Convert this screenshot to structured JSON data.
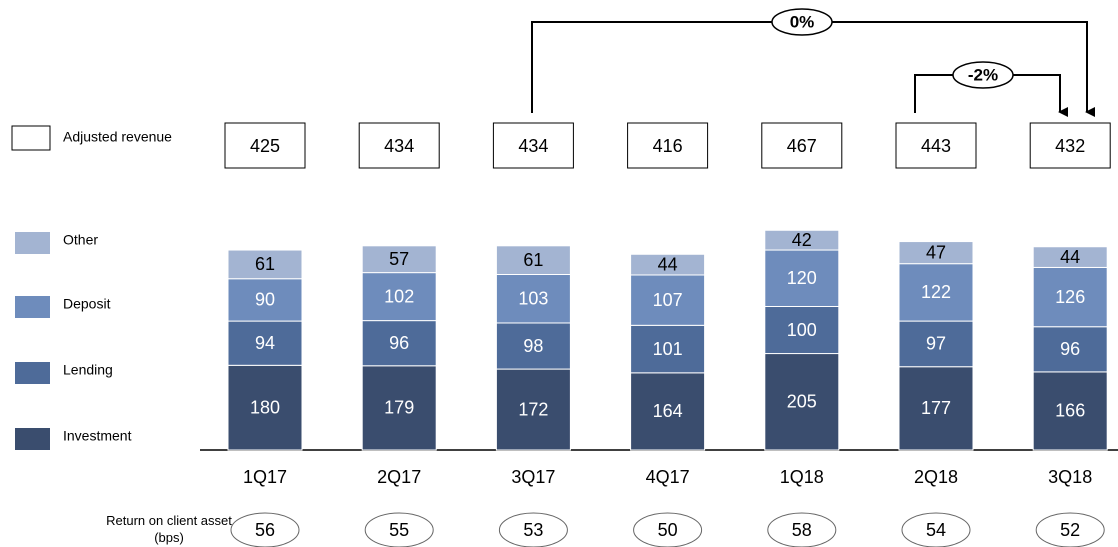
{
  "chart_data": {
    "type": "bar",
    "stacked": true,
    "categories": [
      "1Q17",
      "2Q17",
      "3Q17",
      "4Q17",
      "1Q18",
      "2Q18",
      "3Q18"
    ],
    "series": [
      {
        "name": "Investment",
        "color": "#3a4d6e",
        "values": [
          180,
          179,
          172,
          164,
          205,
          177,
          166
        ]
      },
      {
        "name": "Lending",
        "color": "#4e6b99",
        "values": [
          94,
          96,
          98,
          101,
          100,
          97,
          96
        ]
      },
      {
        "name": "Deposit",
        "color": "#6e8cbc",
        "values": [
          90,
          102,
          103,
          107,
          120,
          122,
          126
        ]
      },
      {
        "name": "Other",
        "color": "#a3b4d2",
        "values": [
          61,
          57,
          61,
          44,
          42,
          47,
          44
        ]
      }
    ],
    "adjusted_revenue": {
      "name": "Adjusted revenue",
      "values": [
        425,
        434,
        434,
        416,
        467,
        443,
        432
      ]
    },
    "return_on_client_asset": {
      "name": "Return on client asset (bps)",
      "values": [
        56,
        55,
        53,
        50,
        58,
        54,
        52
      ]
    },
    "annotations": [
      "0%",
      "-2%"
    ]
  }
}
